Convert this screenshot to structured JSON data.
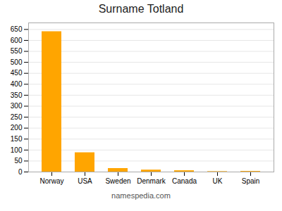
{
  "chart_data": {
    "type": "bar",
    "title": "Surname Totland",
    "categories": [
      "Norway",
      "USA",
      "Sweden",
      "Denmark",
      "Canada",
      "UK",
      "Spain"
    ],
    "values": [
      640,
      88,
      16,
      9,
      6,
      2,
      3
    ],
    "color": "#FFA500",
    "ylim": [
      0,
      680
    ],
    "yticks": [
      0,
      50,
      100,
      150,
      200,
      250,
      300,
      350,
      400,
      450,
      500,
      550,
      600,
      650
    ],
    "grid": true,
    "annotations": [
      "namespedia.com"
    ]
  }
}
